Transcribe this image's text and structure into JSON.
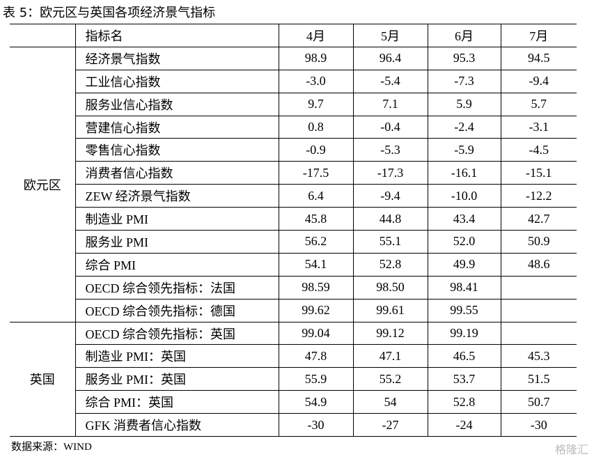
{
  "title": "表 5：欧元区与英国各项经济景气指标",
  "table": {
    "header": [
      "指标名",
      "4月",
      "5月",
      "6月",
      "7月"
    ],
    "groups": [
      {
        "label": "欧元区",
        "rows": [
          [
            "经济景气指数",
            "98.9",
            "96.4",
            "95.3",
            "94.5"
          ],
          [
            "工业信心指数",
            "-3.0",
            "-5.4",
            "-7.3",
            "-9.4"
          ],
          [
            "服务业信心指数",
            "9.7",
            "7.1",
            "5.9",
            "5.7"
          ],
          [
            "营建信心指数",
            "0.8",
            "-0.4",
            "-2.4",
            "-3.1"
          ],
          [
            "零售信心指数",
            "-0.9",
            "-5.3",
            "-5.9",
            "-4.5"
          ],
          [
            "消费者信心指数",
            "-17.5",
            "-17.3",
            "-16.1",
            "-15.1"
          ],
          [
            "ZEW 经济景气指数",
            "6.4",
            "-9.4",
            "-10.0",
            "-12.2"
          ],
          [
            "制造业 PMI",
            "45.8",
            "44.8",
            "43.4",
            "42.7"
          ],
          [
            "服务业 PMI",
            "56.2",
            "55.1",
            "52.0",
            "50.9"
          ],
          [
            "综合 PMI",
            "54.1",
            "52.8",
            "49.9",
            "48.6"
          ],
          [
            "OECD 综合领先指标：法国",
            "98.59",
            "98.50",
            "98.41"
          ],
          [
            "OECD 综合领先指标：德国",
            "99.62",
            "99.61",
            "99.55"
          ]
        ]
      },
      {
        "label": "英国",
        "rows": [
          [
            "OECD 综合领先指标：英国",
            "99.04",
            "99.12",
            "99.19"
          ],
          [
            "制造业 PMI：英国",
            "47.8",
            "47.1",
            "46.5",
            "45.3"
          ],
          [
            "服务业 PMI：英国",
            "55.9",
            "55.2",
            "53.7",
            "51.5"
          ],
          [
            "综合 PMI：英国",
            "54.9",
            "54",
            "52.8",
            "50.7"
          ],
          [
            "GFK 消费者信心指数",
            "-30",
            "-27",
            "-24",
            "-30"
          ]
        ]
      }
    ]
  },
  "source": "数据来源：WIND",
  "watermark": "格隆汇"
}
